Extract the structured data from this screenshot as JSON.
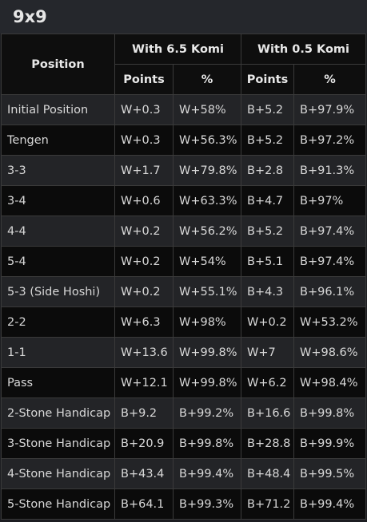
{
  "title": "9x9",
  "headers": {
    "position": "Position",
    "komi_65": "With 6.5 Komi",
    "komi_05": "With 0.5 Komi",
    "points_1": "Points",
    "pct_1": "%",
    "points_2": "Points",
    "pct_2": "%"
  },
  "rows": [
    {
      "position": "Initial Position",
      "p65": "W+0.3",
      "pct65": "W+58%",
      "p05": "B+5.2",
      "pct05": "B+97.9%"
    },
    {
      "position": "Tengen",
      "p65": "W+0.3",
      "pct65": "W+56.3%",
      "p05": "B+5.2",
      "pct05": "B+97.2%"
    },
    {
      "position": "3-3",
      "p65": "W+1.7",
      "pct65": "W+79.8%",
      "p05": "B+2.8",
      "pct05": "B+91.3%"
    },
    {
      "position": "3-4",
      "p65": "W+0.6",
      "pct65": "W+63.3%",
      "p05": "B+4.7",
      "pct05": "B+97%"
    },
    {
      "position": "4-4",
      "p65": "W+0.2",
      "pct65": "W+56.2%",
      "p05": "B+5.2",
      "pct05": "B+97.4%"
    },
    {
      "position": "5-4",
      "p65": "W+0.2",
      "pct65": "W+54%",
      "p05": "B+5.1",
      "pct05": "B+97.4%"
    },
    {
      "position": "5-3 (Side Hoshi)",
      "p65": "W+0.2",
      "pct65": "W+55.1%",
      "p05": "B+4.3",
      "pct05": "B+96.1%"
    },
    {
      "position": "2-2",
      "p65": "W+6.3",
      "pct65": "W+98%",
      "p05": "W+0.2",
      "pct05": "W+53.2%"
    },
    {
      "position": "1-1",
      "p65": "W+13.6",
      "pct65": "W+99.8%",
      "p05": "W+7",
      "pct05": "W+98.6%"
    },
    {
      "position": "Pass",
      "p65": "W+12.1",
      "pct65": "W+99.8%",
      "p05": "W+6.2",
      "pct05": "W+98.4%"
    },
    {
      "position": "2-Stone Handicap",
      "p65": "B+9.2",
      "pct65": "B+99.2%",
      "p05": "B+16.6",
      "pct05": "B+99.8%"
    },
    {
      "position": "3-Stone Handicap",
      "p65": "B+20.9",
      "pct65": "B+99.8%",
      "p05": "B+28.8",
      "pct05": "B+99.9%"
    },
    {
      "position": "4-Stone Handicap",
      "p65": "B+43.4",
      "pct65": "B+99.4%",
      "p05": "B+48.4",
      "pct05": "B+99.5%"
    },
    {
      "position": "5-Stone Handicap",
      "p65": "B+64.1",
      "pct65": "B+99.3%",
      "p05": "B+71.2",
      "pct05": "B+99.4%"
    }
  ]
}
